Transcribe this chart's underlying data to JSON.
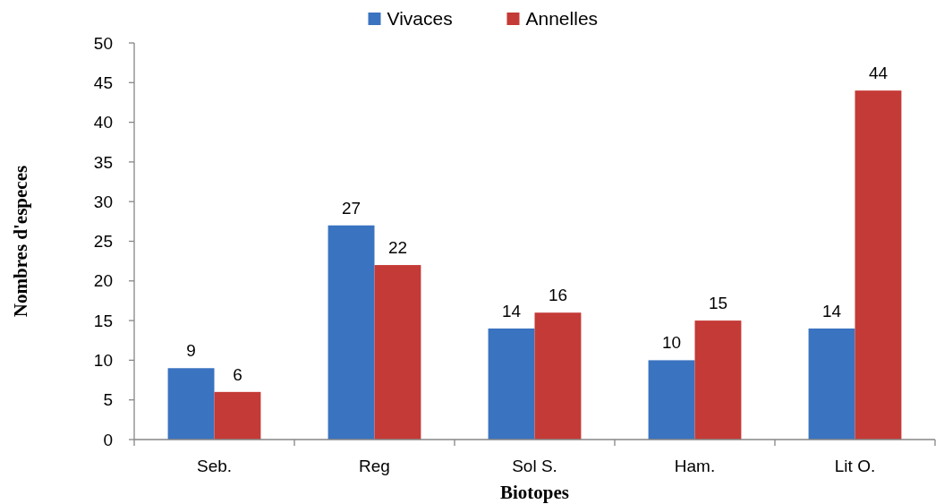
{
  "chart_data": {
    "type": "bar",
    "xlabel": "Biotopes",
    "ylabel": "Nombres d'especes",
    "categories": [
      "Seb.",
      "Reg",
      "Sol S.",
      "Ham.",
      "Lit O."
    ],
    "series": [
      {
        "name": "Vivaces",
        "color": "#3a73c0",
        "values": [
          9,
          27,
          14,
          10,
          14
        ]
      },
      {
        "name": "Annelles",
        "color": "#c43a36",
        "values": [
          6,
          22,
          16,
          15,
          44
        ]
      }
    ],
    "ylim": [
      0,
      50
    ],
    "yticks": [
      0,
      5,
      10,
      15,
      20,
      25,
      30,
      35,
      40,
      45,
      50
    ],
    "data_labels": true,
    "legend": "top",
    "grid": false
  }
}
